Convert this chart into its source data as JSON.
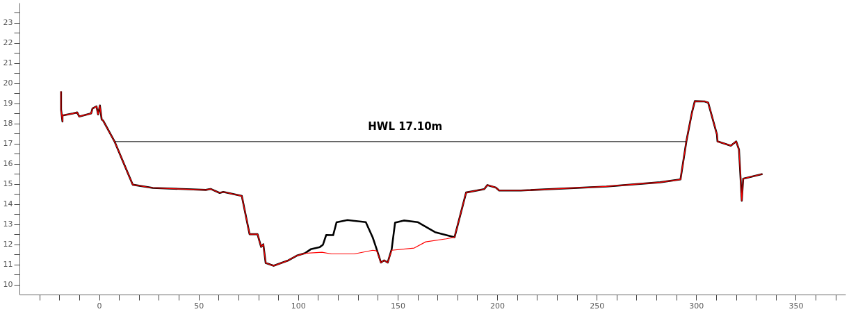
{
  "chart_data": {
    "type": "line",
    "xlim": [
      -40,
      375
    ],
    "xticks": [
      {
        "value": -30,
        "label": null
      },
      {
        "value": -20,
        "label": null
      },
      {
        "value": -10,
        "label": null
      },
      0,
      {
        "value": 10,
        "label": null
      },
      {
        "value": 20,
        "label": null
      },
      {
        "value": 30,
        "label": null
      },
      {
        "value": 40,
        "label": null
      },
      50,
      {
        "value": 60,
        "label": null
      },
      {
        "value": 70,
        "label": null
      },
      {
        "value": 80,
        "label": null
      },
      {
        "value": 90,
        "label": null
      },
      100,
      {
        "value": 110,
        "label": null
      },
      {
        "value": 120,
        "label": null
      },
      {
        "value": 130,
        "label": null
      },
      {
        "value": 140,
        "label": null
      },
      150,
      {
        "value": 160,
        "label": null
      },
      {
        "value": 170,
        "label": null
      },
      {
        "value": 180,
        "label": null
      },
      {
        "value": 190,
        "label": null
      },
      200,
      {
        "value": 210,
        "label": null
      },
      {
        "value": 220,
        "label": null
      },
      {
        "value": 230,
        "label": null
      },
      {
        "value": 240,
        "label": null
      },
      250,
      {
        "value": 260,
        "label": null
      },
      {
        "value": 270,
        "label": null
      },
      {
        "value": 280,
        "label": null
      },
      {
        "value": 290,
        "label": null
      },
      300,
      {
        "value": 310,
        "label": null
      },
      {
        "value": 320,
        "label": null
      },
      {
        "value": 330,
        "label": null
      },
      {
        "value": 340,
        "label": null
      },
      350,
      {
        "value": 360,
        "label": null
      },
      {
        "value": 370,
        "label": null
      }
    ],
    "ylim": [
      9.5,
      24
    ],
    "yticks": [
      10,
      {
        "value": 10.5,
        "label": null
      },
      11,
      {
        "value": 11.5,
        "label": null
      },
      12,
      {
        "value": 12.5,
        "label": null
      },
      13,
      {
        "value": 13.5,
        "label": null
      },
      14,
      {
        "value": 14.5,
        "label": null
      },
      15,
      {
        "value": 15.5,
        "label": null
      },
      16,
      {
        "value": 16.5,
        "label": null
      },
      17,
      {
        "value": 17.5,
        "label": null
      },
      18,
      {
        "value": 18.5,
        "label": null
      },
      19,
      {
        "value": 19.5,
        "label": null
      },
      20,
      {
        "value": 20.5,
        "label": null
      },
      21,
      {
        "value": 21.5,
        "label": null
      },
      22,
      {
        "value": 22.5,
        "label": null
      },
      23,
      {
        "value": 23.5,
        "label": null
      }
    ],
    "grid": false,
    "series": [
      {
        "color": "#000000",
        "x": [
          -19.1,
          -19.1,
          -18.4,
          -18.4,
          -13,
          -11,
          -10,
          -4,
          -3.3,
          -1.3,
          -0.5,
          0.4,
          1.3,
          2,
          7.9,
          16.9,
          27,
          53.6,
          56,
          60.6,
          62.4,
          71.7,
          75.6,
          79.6,
          81.4,
          82.5,
          83.7,
          87.7,
          94.7,
          99.3,
          103.4,
          106.3,
          110.9,
          112.5,
          114.1,
          117.6,
          119.3,
          124.8,
          134,
          137.5,
          138.9,
          141.6,
          143.2,
          145,
          147,
          148.7,
          153.1,
          160,
          168.8,
          178.6,
          184.4,
          193.5,
          195.1,
          199.3,
          201,
          211.9,
          254.9,
          281.9,
          292.1,
          295.1,
          297.9,
          299.3,
          304.2,
          306,
          310.4,
          310.7,
          317.4,
          320.1,
          321.5,
          322.9,
          323.6,
          333.3
        ],
        "values": [
          19.6,
          18.7,
          18.1,
          18.4,
          18.5,
          18.55,
          18.35,
          18.5,
          18.75,
          18.85,
          18.45,
          18.9,
          18.2,
          18.15,
          17.08,
          14.96,
          14.8,
          14.7,
          14.75,
          14.55,
          14.6,
          14.4,
          12.5,
          12.5,
          11.87,
          12.0,
          11.07,
          10.93,
          11.18,
          11.43,
          11.55,
          11.75,
          11.86,
          11.98,
          12.46,
          12.45,
          13.09,
          13.2,
          13.1,
          12.33,
          11.92,
          11.09,
          11.2,
          11.09,
          11.75,
          13.07,
          13.18,
          13.1,
          12.6,
          12.35,
          14.57,
          14.74,
          14.94,
          14.82,
          14.67,
          14.67,
          14.87,
          15.08,
          15.22,
          17.14,
          18.56,
          19.11,
          19.1,
          19.04,
          17.46,
          17.11,
          16.9,
          17.11,
          16.7,
          14.16,
          15.26,
          15.49
        ]
      },
      {
        "color": "#ff0000",
        "x": [
          -19.1,
          -19.1,
          -18.4,
          -18.4,
          -13,
          -11,
          -10,
          -4,
          -3.3,
          -1.3,
          -0.5,
          0.4,
          1.3,
          2,
          7.9,
          16.9,
          27,
          53.6,
          56,
          60.6,
          62.4,
          71.7,
          75.6,
          79.6,
          81.4,
          82.5,
          83.7,
          87.7,
          94.7,
          99.3,
          103.4,
          112,
          116.7,
          128.2,
          137.5,
          139.5,
          141.6,
          143.2,
          145,
          147,
          158.3,
          164.1,
          174.5,
          178.6,
          184.4,
          193.5,
          195.1,
          199.3,
          201,
          211.9,
          254.9,
          281.9,
          292.1,
          295.1,
          297.9,
          299.3,
          304.2,
          306,
          310.4,
          310.7,
          317.4,
          320.1,
          321.5,
          322.9,
          323.6,
          333.3
        ],
        "values": [
          19.6,
          18.7,
          18.1,
          18.4,
          18.5,
          18.55,
          18.35,
          18.5,
          18.75,
          18.85,
          18.45,
          18.9,
          18.2,
          18.15,
          17.08,
          14.96,
          14.8,
          14.7,
          14.75,
          14.55,
          14.6,
          14.4,
          12.5,
          12.5,
          11.87,
          12.0,
          11.07,
          10.93,
          11.18,
          11.43,
          11.55,
          11.6,
          11.52,
          11.52,
          11.7,
          11.67,
          11.09,
          11.2,
          11.09,
          11.7,
          11.81,
          12.12,
          12.27,
          12.35,
          14.57,
          14.74,
          14.94,
          14.82,
          14.67,
          14.67,
          14.87,
          15.08,
          15.22,
          17.14,
          18.56,
          19.11,
          19.1,
          19.04,
          17.46,
          17.11,
          16.9,
          17.11,
          16.7,
          14.16,
          15.26,
          15.49
        ]
      },
      {
        "color": "#000000",
        "x": [
          7.9,
          295.1
        ],
        "values": [
          17.1,
          17.1
        ]
      }
    ],
    "annotations": [
      {
        "text": "HWL 17.10m",
        "x": 153.8,
        "y": 17.1
      }
    ]
  }
}
